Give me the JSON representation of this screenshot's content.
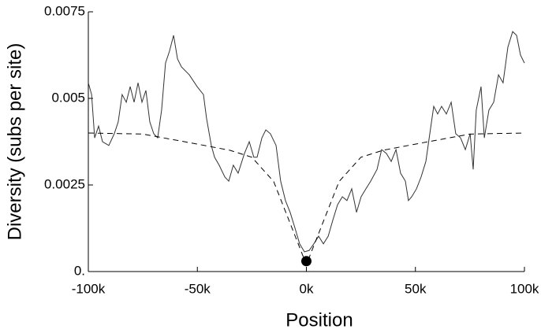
{
  "chart_data": {
    "type": "line",
    "x_label": "Position",
    "y_label": "Diversity (subs per site)",
    "xlim": [
      -100000,
      100000
    ],
    "ylim": [
      0,
      0.0075
    ],
    "xticks": [
      {
        "value": -100000,
        "label": "-100k"
      },
      {
        "value": -50000,
        "label": "-50k"
      },
      {
        "value": 0,
        "label": "0k"
      },
      {
        "value": 50000,
        "label": "50k"
      },
      {
        "value": 100000,
        "label": "100k"
      }
    ],
    "yticks": [
      {
        "value": 0,
        "label": "0."
      },
      0.0025,
      0.005,
      0.0075
    ],
    "series": [
      {
        "color": "#333333",
        "style": "solid",
        "x": [
          -100000,
          -98500,
          -97100,
          -95300,
          -93500,
          -90600,
          -88100,
          -86300,
          -84500,
          -82600,
          -80800,
          -79000,
          -77200,
          -75400,
          -73600,
          -71800,
          -70000,
          -68200,
          -66400,
          -64600,
          -62800,
          -60900,
          -59100,
          -57300,
          -53700,
          -50100,
          -47200,
          -45800,
          -43600,
          -42100,
          -40000,
          -37400,
          -35600,
          -33500,
          -31300,
          -28400,
          -26200,
          -24100,
          -22600,
          -20400,
          -18600,
          -16500,
          -13900,
          -11800,
          -9600,
          -7400,
          -5200,
          -3100,
          -900,
          1300,
          3400,
          5600,
          7800,
          10000,
          12100,
          14300,
          16500,
          18600,
          20800,
          23000,
          25100,
          27300,
          29500,
          32400,
          34500,
          36700,
          38900,
          41100,
          43200,
          45400,
          46800,
          48300,
          50500,
          52600,
          54800,
          56600,
          58400,
          60200,
          62000,
          64200,
          66400,
          68500,
          70700,
          72900,
          75100,
          76500,
          77900,
          80100,
          81600,
          83700,
          85900,
          88100,
          90200,
          92400,
          94600,
          96400,
          98200,
          100000
        ],
        "values": [
          0.00545,
          0.00511,
          0.00386,
          0.0042,
          0.00375,
          0.00364,
          0.00398,
          0.00432,
          0.00511,
          0.00489,
          0.00534,
          0.00489,
          0.00545,
          0.00489,
          0.00523,
          0.00432,
          0.00398,
          0.00386,
          0.00466,
          0.00602,
          0.00636,
          0.00682,
          0.00614,
          0.00591,
          0.00568,
          0.00534,
          0.00511,
          0.00443,
          0.00364,
          0.0033,
          0.00307,
          0.00273,
          0.00261,
          0.00307,
          0.00284,
          0.00341,
          0.00375,
          0.0033,
          0.0033,
          0.00386,
          0.00409,
          0.00398,
          0.00364,
          0.00261,
          0.00205,
          0.0017,
          0.00125,
          0.0008,
          0.00057,
          0.00061,
          0.0008,
          0.00102,
          0.0008,
          0.00102,
          0.00148,
          0.00193,
          0.00216,
          0.00205,
          0.00239,
          0.00171,
          0.00216,
          0.00239,
          0.00261,
          0.00295,
          0.00352,
          0.00341,
          0.00318,
          0.00352,
          0.00284,
          0.00261,
          0.00205,
          0.00216,
          0.00239,
          0.00273,
          0.00318,
          0.00398,
          0.00477,
          0.00455,
          0.00477,
          0.00455,
          0.00489,
          0.00398,
          0.00386,
          0.00352,
          0.00398,
          0.00295,
          0.00466,
          0.00534,
          0.00386,
          0.00466,
          0.00489,
          0.00568,
          0.00545,
          0.00648,
          0.00693,
          0.00682,
          0.00625,
          0.00602
        ]
      },
      {
        "color": "#000000",
        "style": "dashed",
        "x": [
          -100000,
          -75000,
          -50000,
          -35000,
          -25000,
          -15000,
          -10000,
          -5000,
          0,
          5000,
          10000,
          15000,
          25000,
          35000,
          50000,
          75000,
          100000
        ],
        "values": [
          0.004,
          0.00397,
          0.00368,
          0.0035,
          0.0033,
          0.0026,
          0.0018,
          0.001,
          0.0002,
          0.001,
          0.0018,
          0.0026,
          0.0033,
          0.0035,
          0.00368,
          0.00397,
          0.004
        ]
      }
    ],
    "marker": {
      "x": 0,
      "y": 0.0003,
      "color": "#000000"
    }
  }
}
